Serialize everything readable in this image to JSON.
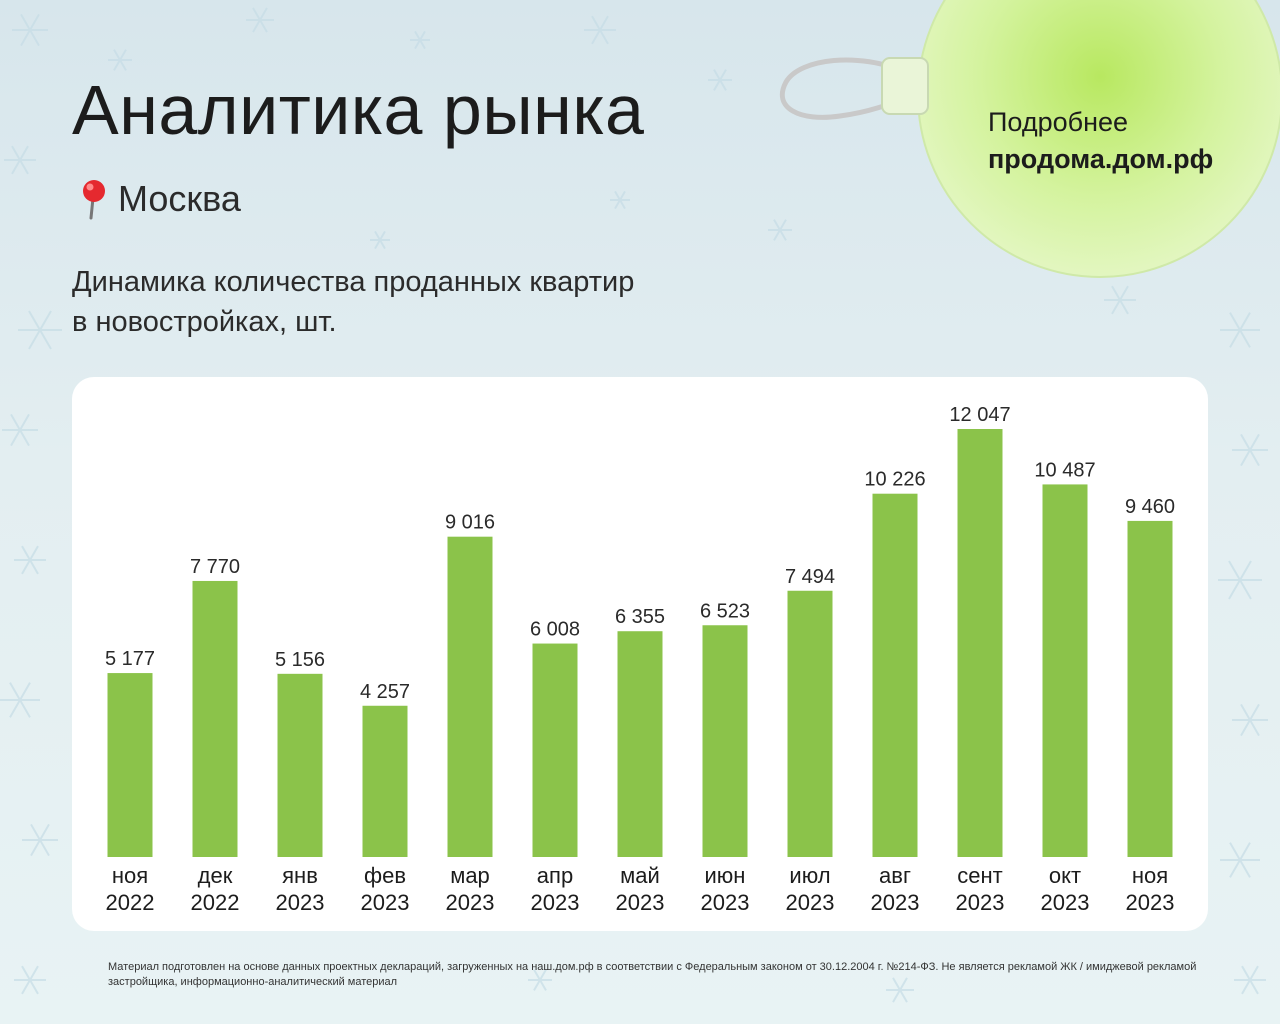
{
  "header": {
    "title": "Аналитика рынка",
    "location": "Москва",
    "subtitle_line1": "Динамика количества проданных квартир",
    "subtitle_line2": "в новостройках, шт."
  },
  "promo": {
    "line1": "Подробнее",
    "line2": "продома.дом.рф"
  },
  "colors": {
    "bar": "#8bc34a",
    "text": "#1c1c1c",
    "ornament": "#d6f5a6"
  },
  "chart_data": {
    "type": "bar",
    "title": "Динамика количества проданных квартир в новостройках, шт.",
    "categories": [
      {
        "month": "ноя",
        "year": "2022"
      },
      {
        "month": "дек",
        "year": "2022"
      },
      {
        "month": "янв",
        "year": "2023"
      },
      {
        "month": "фев",
        "year": "2023"
      },
      {
        "month": "мар",
        "year": "2023"
      },
      {
        "month": "апр",
        "year": "2023"
      },
      {
        "month": "май",
        "year": "2023"
      },
      {
        "month": "июн",
        "year": "2023"
      },
      {
        "month": "июл",
        "year": "2023"
      },
      {
        "month": "авг",
        "year": "2023"
      },
      {
        "month": "сент",
        "year": "2023"
      },
      {
        "month": "окт",
        "year": "2023"
      },
      {
        "month": "ноя",
        "year": "2023"
      }
    ],
    "values": [
      5177,
      7770,
      5156,
      4257,
      9016,
      6008,
      6355,
      6523,
      7494,
      10226,
      12047,
      10487,
      9460
    ],
    "value_labels": [
      "5 177",
      "7 770",
      "5 156",
      "4 257",
      "9 016",
      "6 008",
      "6 355",
      "6 523",
      "7 494",
      "10 226",
      "12 047",
      "10 487",
      "9 460"
    ],
    "ylim": [
      0,
      12047
    ],
    "xlabel": "",
    "ylabel": "шт.",
    "grid": false,
    "legend": "none"
  },
  "footnote": "Материал подготовлен на основе данных проектных деклараций, загруженных на наш.дом.рф в соответствии с Федеральным законом от 30.12.2004 г. №214-ФЗ. Не является рекламой ЖК / имиджевой рекламой застройщика, информационно-аналитический материал"
}
